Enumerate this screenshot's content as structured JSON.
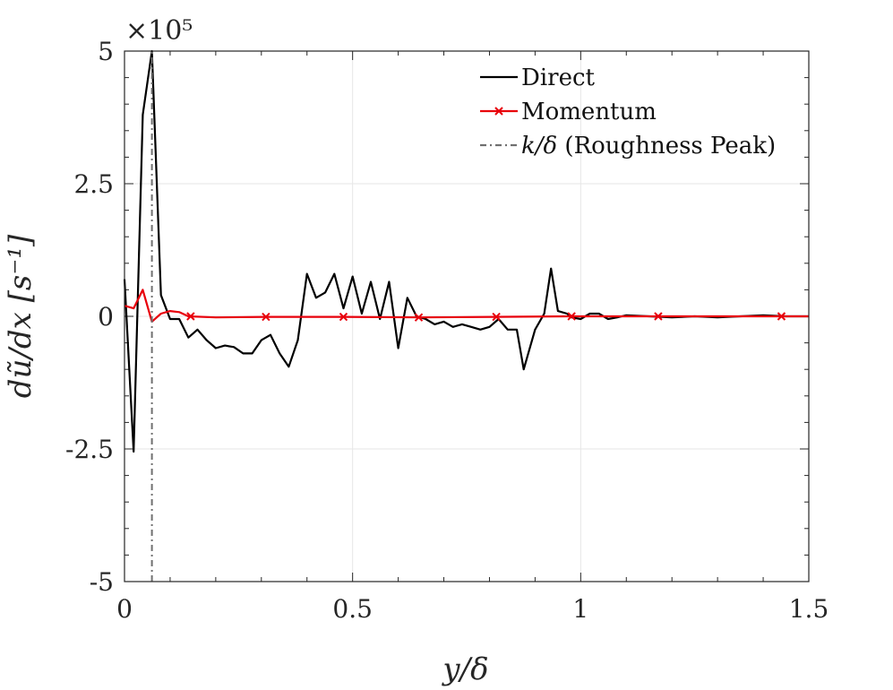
{
  "chart_data": {
    "type": "line",
    "title": "",
    "xlabel": "y/δ",
    "ylabel": "dũ/dx  [s⁻¹]",
    "y_exponent": "×10⁵",
    "xlim": [
      0,
      1.5
    ],
    "ylim": [
      -5,
      5
    ],
    "xticks": [
      0,
      0.5,
      1,
      1.5
    ],
    "xtick_labels": [
      "0",
      "0.5",
      "1",
      "1.5"
    ],
    "yticks": [
      -5,
      -2.5,
      0,
      2.5,
      5
    ],
    "ytick_labels": [
      "-5",
      "-2.5",
      "0",
      "2.5",
      "5"
    ],
    "grid": true,
    "legend_location": "top-right",
    "series": [
      {
        "name": "Direct",
        "color": "#000000",
        "line_style": "solid",
        "marker": "none",
        "x": [
          0.0,
          0.02,
          0.04,
          0.06,
          0.08,
          0.1,
          0.12,
          0.14,
          0.16,
          0.18,
          0.2,
          0.22,
          0.24,
          0.26,
          0.28,
          0.3,
          0.32,
          0.34,
          0.36,
          0.38,
          0.4,
          0.42,
          0.44,
          0.46,
          0.48,
          0.5,
          0.52,
          0.54,
          0.56,
          0.58,
          0.6,
          0.62,
          0.64,
          0.66,
          0.68,
          0.7,
          0.72,
          0.74,
          0.76,
          0.78,
          0.8,
          0.82,
          0.84,
          0.86,
          0.875,
          0.9,
          0.92,
          0.935,
          0.95,
          0.97,
          0.98,
          1.0,
          1.02,
          1.04,
          1.06,
          1.08,
          1.1,
          1.15,
          1.2,
          1.25,
          1.3,
          1.35,
          1.4,
          1.45,
          1.5
        ],
        "values": [
          0.7,
          -2.55,
          3.8,
          5.0,
          0.4,
          -0.05,
          -0.05,
          -0.4,
          -0.25,
          -0.45,
          -0.6,
          -0.55,
          -0.58,
          -0.7,
          -0.7,
          -0.45,
          -0.35,
          -0.7,
          -0.95,
          -0.45,
          0.8,
          0.35,
          0.45,
          0.8,
          0.15,
          0.75,
          0.05,
          0.65,
          -0.05,
          0.65,
          -0.6,
          0.35,
          0.0,
          -0.05,
          -0.15,
          -0.1,
          -0.2,
          -0.15,
          -0.2,
          -0.25,
          -0.2,
          -0.05,
          -0.25,
          -0.25,
          -1.0,
          -0.25,
          0.05,
          0.9,
          0.1,
          0.05,
          -0.02,
          -0.05,
          0.05,
          0.05,
          -0.05,
          -0.02,
          0.02,
          0.0,
          -0.02,
          0.0,
          -0.02,
          0.0,
          0.02,
          0.0,
          0.0
        ]
      },
      {
        "name": "Momentum",
        "color": "#e8000b",
        "line_style": "solid",
        "marker": "x",
        "x": [
          0.0,
          0.02,
          0.04,
          0.06,
          0.08,
          0.1,
          0.12,
          0.14,
          0.2,
          0.31,
          0.48,
          0.65,
          0.81,
          0.98,
          1.17,
          1.44,
          1.5
        ],
        "values": [
          0.2,
          0.15,
          0.5,
          -0.1,
          0.05,
          0.1,
          0.08,
          0.0,
          -0.02,
          -0.01,
          -0.01,
          -0.02,
          -0.01,
          0.0,
          0.0,
          0.0,
          0.0
        ],
        "marker_x": [
          0.145,
          0.31,
          0.48,
          0.645,
          0.815,
          0.98,
          1.17,
          1.44
        ],
        "marker_values": [
          0.0,
          -0.01,
          -0.01,
          -0.02,
          -0.01,
          0.0,
          0.0,
          0.0
        ]
      },
      {
        "name": "k/δ (Roughness Peak)",
        "color": "#707070",
        "line_style": "dash-dot",
        "marker": "none",
        "x": [
          0.06,
          0.06
        ],
        "values": [
          -5,
          5
        ]
      }
    ],
    "legend": [
      {
        "math": "",
        "text": "Direct"
      },
      {
        "math": "",
        "text": "Momentum"
      },
      {
        "math": "k/δ",
        "text": " (Roughness Peak)"
      }
    ]
  }
}
